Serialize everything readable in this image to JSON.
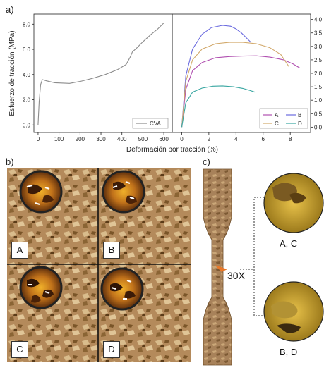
{
  "panel_labels": {
    "a": "a)",
    "b": "b)",
    "c": "c)"
  },
  "colors": {
    "CVA": "#8c8c8c",
    "A": "#b04fb0",
    "B": "#6b6bdf",
    "C": "#d2a96b",
    "D": "#3aa7a2",
    "wood_light": "#c9a677",
    "wood_dark": "#6b4a25",
    "arrow": "#e8782a"
  },
  "chart_data": [
    {
      "type": "line",
      "panel": "a-left",
      "ylabel": "Esfuerzo de tracción (MPa)",
      "xlabel": "Deformación por tracción (%)",
      "xlim": [
        -20,
        640
      ],
      "ylim": [
        -0.6,
        8.8
      ],
      "xticks": [
        0,
        100,
        200,
        300,
        400,
        500,
        600
      ],
      "yticks": [
        0.0,
        2.0,
        4.0,
        6.0,
        8.0
      ],
      "ytick_labels": [
        "0.0",
        "2.0",
        "4.0",
        "6.0",
        "8.0"
      ],
      "grid": false,
      "legend": "bottom-right",
      "series": [
        {
          "name": "CVA",
          "x": [
            0,
            5,
            12,
            20,
            40,
            80,
            150,
            200,
            260,
            320,
            380,
            420,
            440,
            450,
            470,
            500,
            540,
            570,
            600
          ],
          "y": [
            0.0,
            1.8,
            3.2,
            3.6,
            3.5,
            3.35,
            3.3,
            3.45,
            3.7,
            4.0,
            4.4,
            4.8,
            5.4,
            5.8,
            6.1,
            6.6,
            7.2,
            7.6,
            8.1
          ]
        }
      ]
    },
    {
      "type": "line",
      "panel": "a-right",
      "xlim": [
        -0.7,
        9.5
      ],
      "ylim": [
        -0.2,
        4.2
      ],
      "xticks": [
        0,
        2,
        4,
        6,
        8,
        10
      ],
      "yticks": [
        0.0,
        0.5,
        1.0,
        1.5,
        2.0,
        2.5,
        3.0,
        3.5,
        4.0
      ],
      "ytick_labels": [
        "0.0",
        "0.5",
        "1.0",
        "1.5",
        "2.0",
        "2.5",
        "3.0",
        "3.5",
        "4.0"
      ],
      "grid": false,
      "legend": "bottom-right",
      "series": [
        {
          "name": "A",
          "x": [
            0,
            0.3,
            0.8,
            1.5,
            2.5,
            3.5,
            4.5,
            5.5,
            6.5,
            7.5,
            8.2,
            8.7
          ],
          "y": [
            0,
            1.4,
            2.1,
            2.4,
            2.58,
            2.62,
            2.64,
            2.65,
            2.6,
            2.5,
            2.35,
            2.2
          ]
        },
        {
          "name": "B",
          "x": [
            0,
            0.3,
            0.8,
            1.5,
            2.2,
            3.0,
            3.6,
            4.0,
            4.4,
            4.8,
            5.1
          ],
          "y": [
            0,
            1.9,
            2.9,
            3.45,
            3.7,
            3.78,
            3.75,
            3.65,
            3.5,
            3.3,
            3.15
          ]
        },
        {
          "name": "C",
          "x": [
            0,
            0.3,
            0.8,
            1.5,
            2.5,
            3.5,
            4.5,
            5.5,
            6.5,
            7.3,
            7.9
          ],
          "y": [
            0,
            1.7,
            2.5,
            2.9,
            3.1,
            3.15,
            3.15,
            3.1,
            2.95,
            2.7,
            2.25
          ]
        },
        {
          "name": "D",
          "x": [
            0,
            0.3,
            0.8,
            1.5,
            2.3,
            3.0,
            3.8,
            4.5,
            5.0,
            5.4
          ],
          "y": [
            0,
            0.9,
            1.3,
            1.45,
            1.52,
            1.53,
            1.5,
            1.44,
            1.37,
            1.3
          ]
        }
      ]
    }
  ],
  "panel_b": {
    "tiles": [
      {
        "label": "A"
      },
      {
        "label": "B"
      },
      {
        "label": "C"
      },
      {
        "label": "D"
      }
    ]
  },
  "panel_c": {
    "magnification": "30X",
    "captions": [
      "A, C",
      "B, D"
    ]
  }
}
